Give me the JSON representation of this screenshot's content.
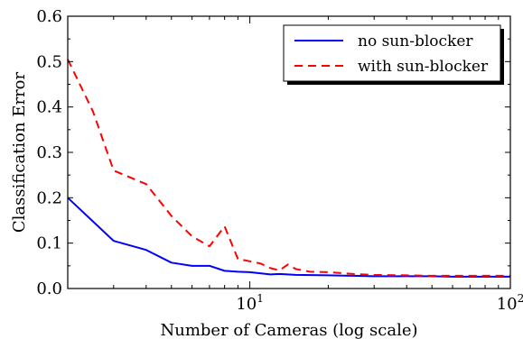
{
  "chart_data": {
    "type": "line",
    "xlabel": "Number of Cameras (log scale)",
    "ylabel": "Classification Error",
    "xscale": "log",
    "xlim": [
      2,
      100
    ],
    "ylim": [
      0,
      0.6
    ],
    "grid": false,
    "legend_position": "top-right",
    "x_ticks": [
      {
        "value": 10,
        "base": "10",
        "exp": "1"
      },
      {
        "value": 100,
        "base": "10",
        "exp": "2"
      }
    ],
    "y_ticks": [
      {
        "value": 0.0,
        "label": "0.0"
      },
      {
        "value": 0.1,
        "label": "0.1"
      },
      {
        "value": 0.2,
        "label": "0.2"
      },
      {
        "value": 0.3,
        "label": "0.3"
      },
      {
        "value": 0.4,
        "label": "0.4"
      },
      {
        "value": 0.5,
        "label": "0.5"
      },
      {
        "value": 0.6,
        "label": "0.6"
      }
    ],
    "series": [
      {
        "name": "no sun-blocker",
        "color": "#0000ff",
        "dash": "solid",
        "x": [
          2,
          3,
          4,
          5,
          6,
          7,
          8,
          9,
          10,
          12,
          13,
          15,
          20,
          25,
          30,
          40,
          50,
          60,
          70,
          80,
          90,
          100
        ],
        "y": [
          0.2,
          0.105,
          0.085,
          0.057,
          0.05,
          0.05,
          0.039,
          0.037,
          0.036,
          0.031,
          0.032,
          0.03,
          0.029,
          0.028,
          0.027,
          0.027,
          0.027,
          0.026,
          0.026,
          0.026,
          0.026,
          0.026
        ]
      },
      {
        "name": "with sun-blocker",
        "color": "#ff0000",
        "dash": "dashed",
        "x": [
          2,
          2.5,
          3,
          4,
          5,
          6,
          7,
          8,
          9,
          10,
          11,
          12,
          13,
          14,
          15,
          17,
          20,
          25,
          30,
          40,
          50,
          60,
          70,
          80,
          90,
          100
        ],
        "y": [
          0.505,
          0.39,
          0.26,
          0.23,
          0.16,
          0.115,
          0.093,
          0.137,
          0.065,
          0.06,
          0.055,
          0.045,
          0.04,
          0.053,
          0.043,
          0.037,
          0.036,
          0.032,
          0.03,
          0.029,
          0.028,
          0.028,
          0.028,
          0.028,
          0.028,
          0.028
        ]
      }
    ]
  }
}
